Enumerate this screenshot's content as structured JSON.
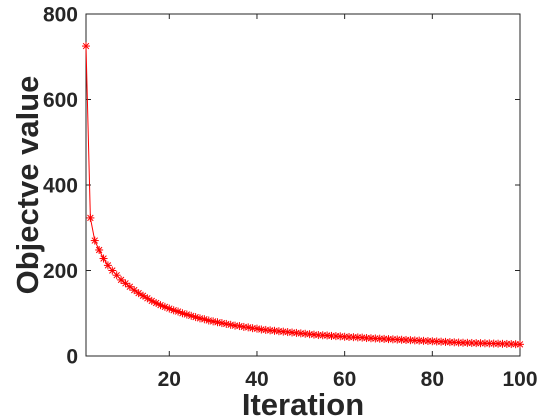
{
  "chart_data": {
    "type": "line",
    "title": "",
    "xlabel": "Iteration",
    "ylabel": "Objectve value",
    "xlim": [
      1,
      100
    ],
    "ylim": [
      0,
      800
    ],
    "xticks": [
      20,
      40,
      60,
      80,
      100
    ],
    "yticks": [
      0,
      200,
      400,
      600,
      800
    ],
    "xtick_labels": [
      "20",
      "40",
      "60",
      "80",
      "100"
    ],
    "ytick_labels": [
      "0",
      "200",
      "400",
      "600",
      "800"
    ],
    "grid": false,
    "legend": "none",
    "series": [
      {
        "color": "#ff0000",
        "marker": "asterisk",
        "x": [
          1,
          2,
          3,
          4,
          5,
          6,
          7,
          8,
          9,
          10,
          11,
          12,
          13,
          14,
          15,
          16,
          17,
          18,
          19,
          20,
          21,
          22,
          23,
          24,
          25,
          26,
          27,
          28,
          29,
          30,
          31,
          32,
          33,
          34,
          35,
          36,
          37,
          38,
          39,
          40,
          41,
          42,
          43,
          44,
          45,
          46,
          47,
          48,
          49,
          50,
          51,
          52,
          53,
          54,
          55,
          56,
          57,
          58,
          59,
          60,
          61,
          62,
          63,
          64,
          65,
          66,
          67,
          68,
          69,
          70,
          71,
          72,
          73,
          74,
          75,
          76,
          77,
          78,
          79,
          80,
          81,
          82,
          83,
          84,
          85,
          86,
          87,
          88,
          89,
          90,
          91,
          92,
          93,
          94,
          95,
          96,
          97,
          98,
          99,
          100
        ],
        "y": [
          725,
          323,
          270,
          248,
          228,
          212,
          200,
          189,
          178,
          170,
          162,
          154,
          147,
          141,
          135,
          129,
          124,
          119,
          115,
          111,
          107,
          104,
          100,
          97,
          94,
          91,
          88,
          86,
          83,
          81,
          79,
          77,
          75,
          73,
          71,
          70,
          68,
          67,
          65,
          64,
          62,
          61,
          60,
          59,
          58,
          57,
          56,
          55,
          54,
          53,
          52,
          51,
          50,
          49,
          48.5,
          48,
          47,
          46.5,
          46,
          45,
          44.5,
          44,
          43.5,
          43,
          42,
          41.5,
          41,
          40.5,
          40,
          39.5,
          39,
          38.5,
          38,
          37.5,
          37,
          36.5,
          36,
          35.5,
          35,
          34.5,
          34,
          33.5,
          33,
          32.5,
          32,
          31.5,
          31,
          30.8,
          30.5,
          30.2,
          30,
          29.7,
          29.4,
          29.1,
          28.8,
          28.5,
          28.2,
          27.9,
          27.6,
          27.3
        ]
      }
    ]
  }
}
